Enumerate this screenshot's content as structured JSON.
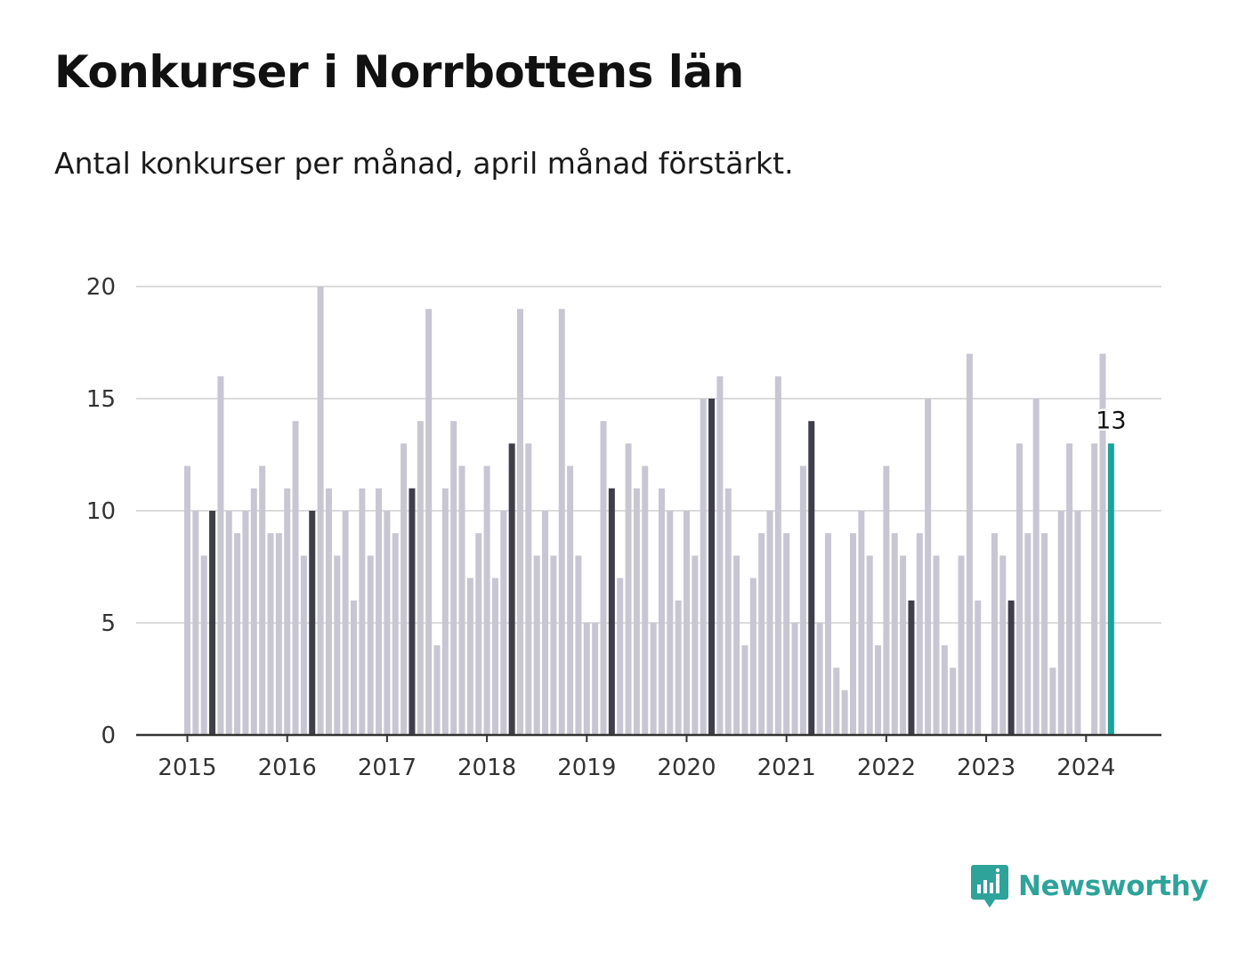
{
  "title": "Konkurser i Norrbottens län",
  "subtitle": "Antal konkurser per månad, april månad förstärkt.",
  "brand": "Newsworthy",
  "colors": {
    "bar": "#c8c6d3",
    "highlight_month": "#3f3e4b",
    "latest": "#1aa39a",
    "grid": "#dcdcdc",
    "axis": "#333333",
    "brand": "#2ea39a"
  },
  "chart_data": {
    "type": "bar",
    "start": "2015-01",
    "x_tick_labels": [
      "2015",
      "2016",
      "2017",
      "2018",
      "2019",
      "2020",
      "2021",
      "2022",
      "2023",
      "2024"
    ],
    "y_ticks": [
      0,
      5,
      10,
      15,
      20
    ],
    "ylim": [
      0,
      20
    ],
    "highlight_month": "april",
    "values": [
      12,
      10,
      8,
      10,
      16,
      10,
      9,
      10,
      11,
      12,
      9,
      9,
      11,
      14,
      8,
      10,
      20,
      11,
      8,
      10,
      6,
      11,
      8,
      11,
      10,
      9,
      13,
      11,
      14,
      19,
      4,
      11,
      14,
      12,
      7,
      9,
      12,
      7,
      10,
      13,
      19,
      13,
      8,
      10,
      8,
      19,
      12,
      8,
      5,
      5,
      14,
      11,
      7,
      13,
      11,
      12,
      5,
      11,
      10,
      6,
      10,
      8,
      15,
      15,
      16,
      11,
      8,
      4,
      7,
      9,
      10,
      16,
      9,
      5,
      12,
      14,
      5,
      9,
      3,
      2,
      9,
      10,
      8,
      4,
      12,
      9,
      8,
      6,
      9,
      15,
      8,
      4,
      3,
      8,
      17,
      6,
      0,
      9,
      8,
      6,
      13,
      9,
      15,
      9,
      3,
      10,
      13,
      10,
      0,
      13,
      17,
      13
    ],
    "latest_label": "13"
  }
}
